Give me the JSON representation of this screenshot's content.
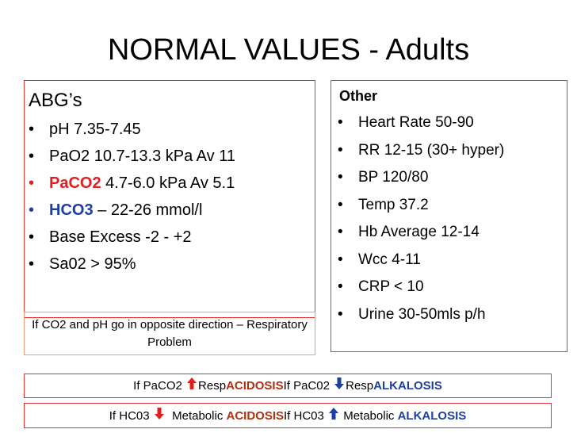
{
  "title": "NORMAL VALUES - Adults",
  "abg": {
    "heading": "ABG’s",
    "items": [
      {
        "pre": "",
        "hl": "",
        "post": "pH 7.35-7.45"
      },
      {
        "pre": "",
        "hl": "",
        "post": "PaO2 10.7-13.3 kPa Av 11"
      },
      {
        "pre": "",
        "hl": "PaCO2",
        "post": " 4.7-6.0 kPa Av 5.1"
      },
      {
        "pre": "",
        "hl": "HCO3",
        "post": " – 22-26 mmol/l"
      },
      {
        "pre": "",
        "hl": "",
        "post": "Base Excess -2 - +2"
      },
      {
        "pre": "",
        "hl": "",
        "post": "Sa02 > 95%"
      }
    ],
    "note": "If CO2 and pH go in opposite direction – Respiratory Problem"
  },
  "other": {
    "heading": "Other",
    "items": [
      "Heart Rate 50-90",
      "RR 12-15 (30+ hyper)",
      "BP 120/80",
      "Temp 37.2",
      "Hb Average 12-14",
      "Wcc 4-11",
      "CRP < 10",
      "Urine 30-50mls p/h"
    ]
  },
  "paco2_line": {
    "a": "If PaCO2 ",
    "b": "Resp",
    "c": "ACIDOSIS",
    "d": "If PaC02 ",
    "e": "Resp",
    "f": "ALKALOSIS"
  },
  "hco3_line": {
    "a": "If HC03 ",
    "b": "  Metabolic ",
    "c": "ACIDOSIS",
    "d": "If HC03 ",
    "e": " Metabolic ",
    "f": "ALKALOSIS"
  },
  "bullet": "•",
  "colors": {
    "red": "#e02020",
    "blue": "#1f3fa0",
    "arrow_red": "#e02020",
    "arrow_blue": "#1f3fa0"
  }
}
